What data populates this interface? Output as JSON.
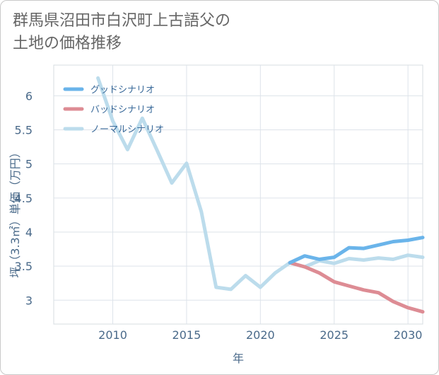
{
  "page": {
    "title_line1": "群馬県沼田市白沢町上古語父の",
    "title_line2": "土地の価格推移"
  },
  "chart_data": {
    "type": "line",
    "xlabel": "年",
    "ylabel": "坪（3.3㎡）単価（万円）",
    "xlim": [
      2006,
      2031
    ],
    "ylim": [
      2.65,
      6.45
    ],
    "xticks": [
      2010,
      2015,
      2020,
      2025,
      2030
    ],
    "yticks": [
      3,
      3.5,
      4,
      4.5,
      5,
      5.5,
      6
    ],
    "ytick_labels": [
      "3",
      "3.5",
      "4",
      "4.5",
      "5",
      "5.5",
      "6"
    ],
    "grid": true,
    "legend_position": "top-left",
    "series": [
      {
        "name": "グッドシナリオ",
        "color": "#6ab4ea",
        "x": [
          2022,
          2023,
          2024,
          2025,
          2026,
          2027,
          2028,
          2029,
          2030,
          2031
        ],
        "y": [
          3.55,
          3.65,
          3.6,
          3.63,
          3.77,
          3.76,
          3.81,
          3.86,
          3.88,
          3.92
        ]
      },
      {
        "name": "バッドシナリオ",
        "color": "#dd8c94",
        "x": [
          2022,
          2023,
          2024,
          2025,
          2026,
          2027,
          2028,
          2029,
          2030,
          2031
        ],
        "y": [
          3.55,
          3.49,
          3.4,
          3.27,
          3.21,
          3.15,
          3.11,
          2.98,
          2.89,
          2.83
        ]
      },
      {
        "name": "ノーマルシナリオ",
        "color": "#bcdcec",
        "x": [
          2009,
          2010,
          2011,
          2012,
          2013,
          2014,
          2015,
          2016,
          2017,
          2018,
          2019,
          2020,
          2021,
          2022,
          2023,
          2024,
          2025,
          2026,
          2027,
          2028,
          2029,
          2030,
          2031
        ],
        "y": [
          6.26,
          5.63,
          5.21,
          5.67,
          5.2,
          4.72,
          5.01,
          4.3,
          3.19,
          3.16,
          3.36,
          3.19,
          3.4,
          3.55,
          3.49,
          3.58,
          3.54,
          3.61,
          3.59,
          3.62,
          3.6,
          3.66,
          3.63
        ]
      }
    ]
  }
}
